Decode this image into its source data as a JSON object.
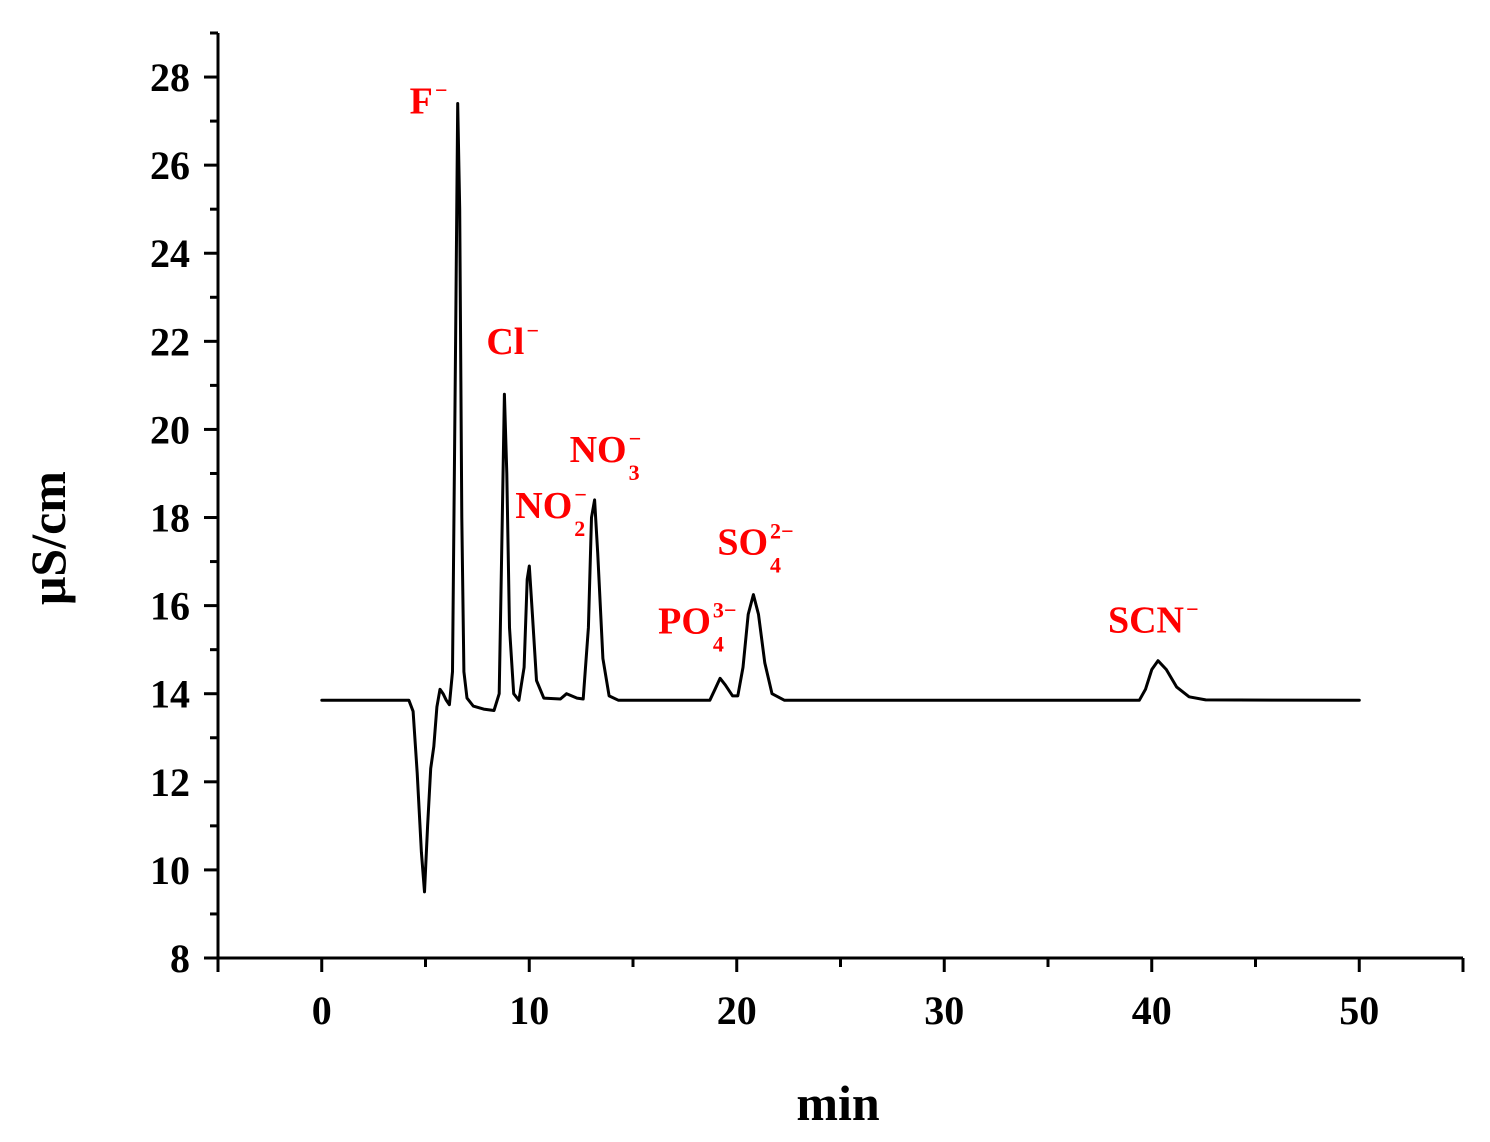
{
  "chart_data": {
    "type": "line",
    "title": "",
    "xlabel": "min",
    "ylabel": "μS/cm",
    "xlim": [
      -5,
      55
    ],
    "ylim": [
      8,
      29
    ],
    "x_ticks": [
      0,
      10,
      20,
      30,
      40,
      50
    ],
    "y_ticks": [
      8,
      10,
      12,
      14,
      16,
      18,
      20,
      22,
      24,
      26,
      28
    ],
    "grid": false,
    "baseline": 13.85,
    "colors": {
      "trace": "#000000",
      "labels": "#ff0000",
      "axes": "#000000"
    },
    "series": [
      {
        "points": [
          [
            0,
            13.85
          ],
          [
            4.2,
            13.85
          ],
          [
            4.4,
            13.6
          ],
          [
            4.6,
            12.2
          ],
          [
            4.8,
            10.4
          ],
          [
            4.95,
            9.5
          ],
          [
            5.1,
            11.0
          ],
          [
            5.25,
            12.3
          ],
          [
            5.4,
            12.8
          ],
          [
            5.55,
            13.7
          ],
          [
            5.7,
            14.1
          ],
          [
            5.85,
            14.0
          ],
          [
            6.0,
            13.85
          ],
          [
            6.15,
            13.75
          ],
          [
            6.3,
            14.5
          ],
          [
            6.45,
            22.0
          ],
          [
            6.55,
            27.4
          ],
          [
            6.65,
            25.0
          ],
          [
            6.75,
            18.0
          ],
          [
            6.85,
            14.5
          ],
          [
            7.0,
            13.9
          ],
          [
            7.3,
            13.72
          ],
          [
            7.8,
            13.65
          ],
          [
            8.3,
            13.62
          ],
          [
            8.55,
            14.0
          ],
          [
            8.7,
            18.0
          ],
          [
            8.8,
            20.8
          ],
          [
            8.92,
            19.0
          ],
          [
            9.05,
            15.5
          ],
          [
            9.25,
            14.0
          ],
          [
            9.5,
            13.85
          ],
          [
            9.75,
            14.6
          ],
          [
            9.9,
            16.6
          ],
          [
            10.0,
            16.9
          ],
          [
            10.15,
            15.8
          ],
          [
            10.35,
            14.3
          ],
          [
            10.7,
            13.9
          ],
          [
            11.5,
            13.88
          ],
          [
            11.8,
            14.0
          ],
          [
            12.3,
            13.9
          ],
          [
            12.6,
            13.88
          ],
          [
            12.85,
            15.5
          ],
          [
            13.0,
            18.0
          ],
          [
            13.15,
            18.4
          ],
          [
            13.3,
            17.2
          ],
          [
            13.55,
            14.8
          ],
          [
            13.85,
            13.95
          ],
          [
            14.3,
            13.85
          ],
          [
            18.7,
            13.85
          ],
          [
            18.95,
            14.1
          ],
          [
            19.2,
            14.35
          ],
          [
            19.45,
            14.2
          ],
          [
            19.8,
            13.95
          ],
          [
            20.05,
            13.95
          ],
          [
            20.3,
            14.6
          ],
          [
            20.55,
            15.8
          ],
          [
            20.8,
            16.25
          ],
          [
            21.05,
            15.8
          ],
          [
            21.35,
            14.7
          ],
          [
            21.7,
            14.0
          ],
          [
            22.3,
            13.85
          ],
          [
            39.4,
            13.85
          ],
          [
            39.7,
            14.1
          ],
          [
            40.0,
            14.55
          ],
          [
            40.3,
            14.75
          ],
          [
            40.7,
            14.55
          ],
          [
            41.2,
            14.15
          ],
          [
            41.8,
            13.93
          ],
          [
            42.6,
            13.86
          ],
          [
            50,
            13.85
          ]
        ]
      }
    ],
    "peaks": [
      {
        "label": "F",
        "sup": "−",
        "sub": "",
        "x": 6.55,
        "y": 27.4
      },
      {
        "label": "Cl",
        "sup": "−",
        "sub": "",
        "x": 8.8,
        "y": 20.8
      },
      {
        "label": "NO",
        "sup": "−",
        "sub": "2",
        "x": 10.0,
        "y": 16.9
      },
      {
        "label": "NO",
        "sup": "−",
        "sub": "3",
        "x": 13.15,
        "y": 18.4
      },
      {
        "label": "PO",
        "sup": "3−",
        "sub": "4",
        "x": 19.2,
        "y": 14.35
      },
      {
        "label": "SO",
        "sup": "2−",
        "sub": "4",
        "x": 20.8,
        "y": 16.25
      },
      {
        "label": "SCN",
        "sup": "−",
        "sub": "",
        "x": 40.3,
        "y": 14.75
      }
    ]
  }
}
